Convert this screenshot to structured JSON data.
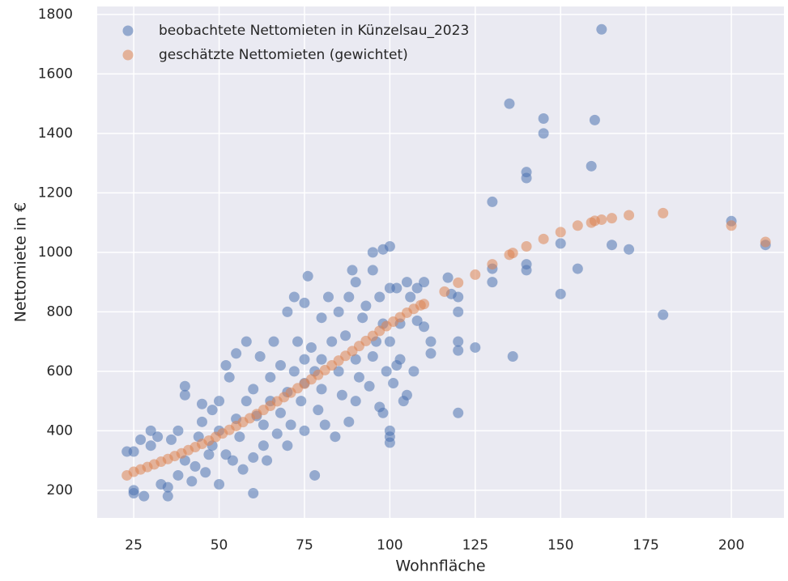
{
  "chart_data": {
    "type": "scatter",
    "xlabel": "Wohnfläche",
    "ylabel": "Nettomiete in €",
    "xlim": [
      14.3,
      215.4
    ],
    "ylim": [
      107,
      1827
    ],
    "xticks": [
      25,
      50,
      75,
      100,
      125,
      150,
      175,
      200
    ],
    "yticks": [
      200,
      400,
      600,
      800,
      1000,
      1200,
      1400,
      1600,
      1800
    ],
    "grid": true,
    "legend": "upper left",
    "series": [
      {
        "name": "beobachtete Nettomieten in Künzelsau_2023",
        "color": "#4c72b0",
        "x": [
          162,
          135,
          145,
          145,
          160,
          159,
          140,
          140,
          130,
          200,
          210,
          165,
          170,
          150,
          140,
          140,
          130,
          130,
          155,
          150,
          180,
          136,
          125,
          120,
          120,
          120,
          120,
          120,
          117,
          118,
          110,
          112,
          112,
          108,
          105,
          102,
          100,
          98,
          95,
          100,
          100,
          100,
          98,
          103,
          105,
          107,
          110,
          23,
          25,
          25,
          25,
          27,
          28,
          30,
          30,
          32,
          33,
          35,
          35,
          36,
          38,
          38,
          40,
          40,
          40,
          42,
          43,
          44,
          45,
          45,
          46,
          47,
          48,
          48,
          50,
          50,
          50,
          52,
          52,
          53,
          54,
          55,
          55,
          56,
          57,
          58,
          58,
          60,
          60,
          60,
          61,
          62,
          63,
          63,
          64,
          65,
          65,
          66,
          67,
          68,
          68,
          70,
          70,
          70,
          71,
          72,
          72,
          73,
          74,
          75,
          75,
          75,
          75,
          76,
          77,
          78,
          78,
          79,
          80,
          80,
          80,
          81,
          82,
          83,
          84,
          85,
          85,
          86,
          87,
          88,
          88,
          89,
          90,
          90,
          90,
          91,
          92,
          93,
          94,
          95,
          95,
          96,
          97,
          97,
          98,
          99,
          100,
          100,
          101,
          102,
          103,
          104,
          106,
          108
        ],
        "values": [
          1750,
          1500,
          1450,
          1400,
          1445,
          1290,
          1270,
          1250,
          1170,
          1105,
          1025,
          1025,
          1010,
          1030,
          960,
          940,
          945,
          900,
          945,
          860,
          790,
          650,
          680,
          700,
          670,
          460,
          850,
          800,
          915,
          860,
          900,
          700,
          660,
          880,
          900,
          880,
          1020,
          1010,
          1000,
          400,
          380,
          360,
          460,
          640,
          520,
          600,
          750,
          330,
          330,
          200,
          190,
          370,
          180,
          400,
          350,
          380,
          220,
          210,
          180,
          370,
          400,
          250,
          550,
          520,
          300,
          230,
          280,
          380,
          490,
          430,
          260,
          320,
          350,
          470,
          500,
          220,
          400,
          620,
          320,
          580,
          300,
          440,
          660,
          380,
          270,
          500,
          700,
          540,
          310,
          190,
          450,
          650,
          350,
          420,
          300,
          580,
          500,
          700,
          390,
          620,
          460,
          800,
          530,
          350,
          420,
          850,
          600,
          700,
          500,
          830,
          640,
          560,
          400,
          920,
          680,
          250,
          600,
          470,
          780,
          640,
          540,
          420,
          850,
          700,
          380,
          800,
          600,
          520,
          720,
          850,
          430,
          940,
          900,
          640,
          500,
          580,
          780,
          820,
          550,
          940,
          650,
          700,
          850,
          480,
          760,
          600,
          880,
          700,
          560,
          620,
          760,
          500,
          850,
          770
        ]
      },
      {
        "name": "geschätzte Nettomieten (gewichtet)",
        "color": "#dd8452",
        "x": [
          23,
          25,
          27,
          29,
          31,
          33,
          35,
          37,
          39,
          41,
          43,
          45,
          47,
          49,
          51,
          53,
          55,
          57,
          59,
          61,
          63,
          65,
          67,
          69,
          71,
          73,
          75,
          77,
          79,
          81,
          83,
          85,
          87,
          89,
          91,
          93,
          95,
          97,
          99,
          101,
          103,
          105,
          107,
          109,
          110,
          116,
          120,
          125,
          130,
          135,
          136,
          140,
          145,
          150,
          155,
          159,
          160,
          162,
          165,
          170,
          180,
          200,
          210
        ],
        "values": [
          250,
          262,
          270,
          278,
          287,
          296,
          305,
          315,
          324,
          335,
          345,
          356,
          367,
          379,
          391,
          403,
          416,
          429,
          442,
          456,
          470,
          484,
          499,
          513,
          528,
          543,
          558,
          573,
          588,
          604,
          620,
          636,
          652,
          668,
          685,
          702,
          719,
          736,
          752,
          767,
          782,
          797,
          810,
          822,
          826,
          868,
          898,
          925,
          960,
          992,
          998,
          1020,
          1045,
          1068,
          1090,
          1100,
          1106,
          1110,
          1115,
          1125,
          1132,
          1090,
          1035
        ]
      }
    ]
  }
}
